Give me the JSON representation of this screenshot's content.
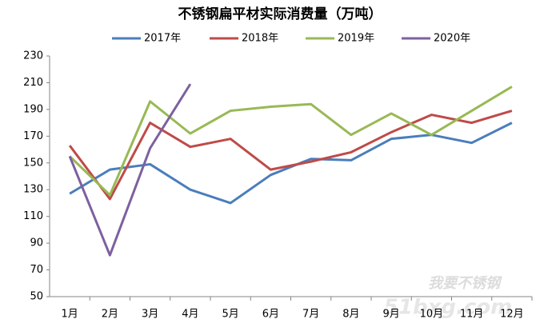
{
  "chart_data": {
    "type": "line",
    "title": "不锈钢扁平材实际消费量（万吨）",
    "categories": [
      "1月",
      "2月",
      "3月",
      "4月",
      "5月",
      "6月",
      "7月",
      "8月",
      "9月",
      "10月",
      "11月",
      "12月"
    ],
    "series": [
      {
        "name": "2017年",
        "color": "#4a7ebb",
        "values": [
          127,
          145,
          149,
          130,
          120,
          141,
          153,
          152,
          168,
          171,
          165,
          180
        ]
      },
      {
        "name": "2018年",
        "color": "#be4b48",
        "values": [
          163,
          123,
          180,
          162,
          168,
          145,
          151,
          158,
          173,
          186,
          180,
          189
        ]
      },
      {
        "name": "2019年",
        "color": "#98b954",
        "values": [
          155,
          126,
          196,
          172,
          189,
          192,
          194,
          171,
          187,
          171,
          189,
          207
        ]
      },
      {
        "name": "2020年",
        "color": "#7d60a0",
        "values": [
          155,
          81,
          161,
          209,
          null,
          null,
          null,
          null,
          null,
          null,
          null,
          null
        ]
      }
    ],
    "ylim": [
      50,
      230
    ],
    "yticks": [
      50,
      70,
      90,
      110,
      130,
      150,
      170,
      190,
      210,
      230
    ],
    "grid": false,
    "legend": "top",
    "watermark": [
      "我要不锈钢",
      "51bxg.com"
    ]
  }
}
